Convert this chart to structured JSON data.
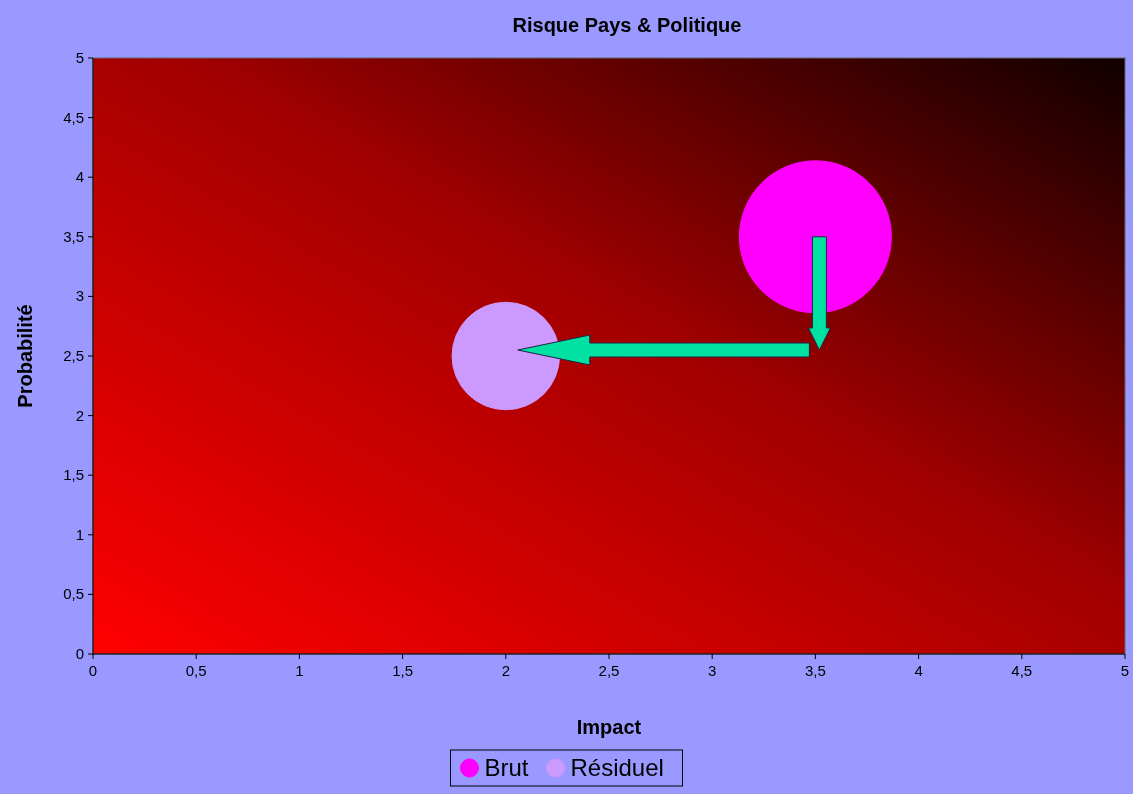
{
  "chart_data": {
    "type": "bubble",
    "title": "Risque Pays & Politique",
    "xlabel": "Impact",
    "ylabel": "Probabilité",
    "xlim": [
      0,
      5
    ],
    "xticks": [
      0,
      {
        "value": 0.5,
        "label": "0,5"
      },
      1,
      {
        "value": 1.5,
        "label": "1,5"
      },
      2,
      {
        "value": 2.5,
        "label": "2,5"
      },
      3,
      {
        "value": 3.5,
        "label": "3,5"
      },
      4,
      {
        "value": 4.5,
        "label": "4,5"
      },
      5
    ],
    "ylim": [
      0,
      5
    ],
    "yticks": [
      0,
      {
        "value": 0.5,
        "label": "0,5"
      },
      1,
      {
        "value": 1.5,
        "label": "1,5"
      },
      2,
      {
        "value": 2.5,
        "label": "2,5"
      },
      3,
      {
        "value": 3.5,
        "label": "3,5"
      },
      4,
      {
        "value": 4.5,
        "label": "4,5"
      },
      5
    ],
    "series": [
      {
        "name": "Brut",
        "color": "#ff00ff",
        "x": [
          3.5
        ],
        "values": [
          3.5
        ],
        "sizes": [
          1
        ]
      },
      {
        "name": "Résiduel",
        "color": "#cc99ff",
        "x": [
          2
        ],
        "values": [
          2.5
        ],
        "sizes": [
          0.5
        ]
      }
    ],
    "legend": "bottom",
    "grid": false
  }
}
